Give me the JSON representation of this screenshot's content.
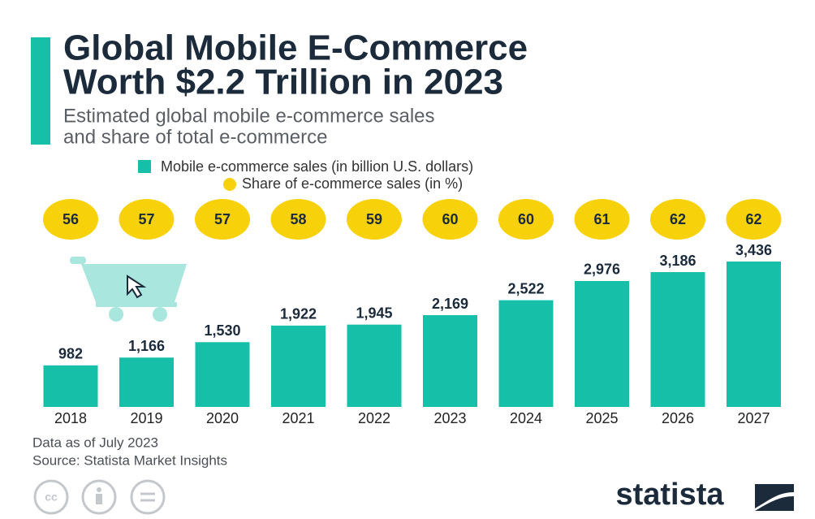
{
  "chart_data": {
    "type": "bar",
    "title_lines": [
      "Global Mobile E-Commerce",
      "Worth $2.2 Trillion in 2023"
    ],
    "subtitle_lines": [
      "Estimated global mobile e-commerce sales",
      "and share of total e-commerce"
    ],
    "categories": [
      "2018",
      "2019",
      "2020",
      "2021",
      "2022",
      "2023",
      "2024",
      "2025",
      "2026",
      "2027"
    ],
    "series": [
      {
        "name": "Mobile e-commerce sales (in billion U.S. dollars)",
        "color": "#16bfa8",
        "values": [
          982,
          1166,
          1530,
          1922,
          1945,
          2169,
          2522,
          2976,
          3186,
          3436
        ],
        "value_labels": [
          "982",
          "1,166",
          "1,530",
          "1,922",
          "1,945",
          "2,169",
          "2,522",
          "2,976",
          "3,186",
          "3,436"
        ]
      },
      {
        "name": "Share of e-commerce sales (in %)",
        "color": "#f7d10a",
        "values": [
          56,
          57,
          57,
          58,
          59,
          60,
          60,
          61,
          62,
          62
        ]
      }
    ],
    "notes": [
      "Data as of July 2023",
      "Source: Statista Market Insights"
    ],
    "brand": "statista"
  }
}
